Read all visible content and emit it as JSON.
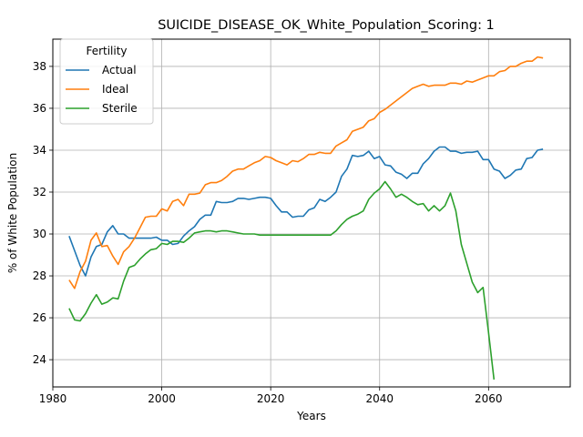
{
  "chart_data": {
    "type": "line",
    "title": "SUICIDE_DISEASE_OK_White_Population_Scoring: 1",
    "xlabel": "Years",
    "ylabel": "% of White Population",
    "xlim": [
      1980,
      2075
    ],
    "ylim": [
      22.7,
      39.3
    ],
    "xticks": [
      1980,
      2000,
      2020,
      2040,
      2060
    ],
    "yticks": [
      24,
      26,
      28,
      30,
      32,
      34,
      36,
      38
    ],
    "grid": true,
    "legend": {
      "title": "Fertility",
      "placement": "top-left"
    },
    "series": [
      {
        "name": "Actual",
        "color": "#1f77b4",
        "x": [
          1983,
          1984,
          1985,
          1986,
          1987,
          1988,
          1989,
          1990,
          1991,
          1992,
          1993,
          1994,
          1995,
          1996,
          1997,
          1998,
          1999,
          2000,
          2001,
          2002,
          2003,
          2004,
          2005,
          2006,
          2007,
          2008,
          2009,
          2010,
          2011,
          2012,
          2013,
          2014,
          2015,
          2016,
          2017,
          2018,
          2019,
          2020,
          2021,
          2022,
          2023,
          2024,
          2025,
          2026,
          2027,
          2028,
          2029,
          2030,
          2031,
          2032,
          2033,
          2034,
          2035,
          2036,
          2037,
          2038,
          2039,
          2040,
          2041,
          2042,
          2043,
          2044,
          2045,
          2046,
          2047,
          2048,
          2049,
          2050,
          2051,
          2052,
          2053,
          2054,
          2055,
          2056,
          2057,
          2058,
          2059,
          2060,
          2061,
          2062,
          2063,
          2064,
          2065,
          2066,
          2067,
          2068,
          2069,
          2070
        ],
        "values": [
          29.9,
          29.2,
          28.5,
          28.0,
          28.9,
          29.4,
          29.5,
          30.1,
          30.4,
          30.0,
          30.0,
          29.8,
          29.8,
          29.8,
          29.8,
          29.8,
          29.85,
          29.7,
          29.7,
          29.5,
          29.55,
          29.9,
          30.15,
          30.35,
          30.7,
          30.9,
          30.9,
          31.55,
          31.5,
          31.5,
          31.55,
          31.7,
          31.7,
          31.65,
          31.7,
          31.75,
          31.75,
          31.7,
          31.35,
          31.05,
          31.05,
          30.8,
          30.85,
          30.85,
          31.15,
          31.25,
          31.65,
          31.55,
          31.75,
          32.0,
          32.75,
          33.1,
          33.75,
          33.7,
          33.75,
          33.95,
          33.6,
          33.7,
          33.3,
          33.25,
          32.95,
          32.85,
          32.65,
          32.9,
          32.9,
          33.35,
          33.6,
          33.95,
          34.15,
          34.15,
          33.95,
          33.95,
          33.85,
          33.9,
          33.9,
          33.95,
          33.55,
          33.55,
          33.1,
          33.0,
          32.65,
          32.8,
          33.05,
          33.1,
          33.6,
          33.65,
          34.0,
          34.05
        ]
      },
      {
        "name": "Ideal",
        "color": "#ff7f0e",
        "x": [
          1983,
          1984,
          1985,
          1986,
          1987,
          1988,
          1989,
          1990,
          1991,
          1992,
          1993,
          1994,
          1995,
          1996,
          1997,
          1998,
          1999,
          2000,
          2001,
          2002,
          2003,
          2004,
          2005,
          2006,
          2007,
          2008,
          2009,
          2010,
          2011,
          2012,
          2013,
          2014,
          2015,
          2016,
          2017,
          2018,
          2019,
          2020,
          2021,
          2022,
          2023,
          2024,
          2025,
          2026,
          2027,
          2028,
          2029,
          2030,
          2031,
          2032,
          2033,
          2034,
          2035,
          2036,
          2037,
          2038,
          2039,
          2040,
          2041,
          2042,
          2043,
          2044,
          2045,
          2046,
          2047,
          2048,
          2049,
          2050,
          2051,
          2052,
          2053,
          2054,
          2055,
          2056,
          2057,
          2058,
          2059,
          2060,
          2061,
          2062,
          2063,
          2064,
          2065,
          2066,
          2067,
          2068,
          2069,
          2070
        ],
        "values": [
          27.8,
          27.4,
          28.2,
          28.7,
          29.7,
          30.05,
          29.4,
          29.45,
          28.95,
          28.55,
          29.15,
          29.4,
          29.8,
          30.3,
          30.8,
          30.85,
          30.85,
          31.2,
          31.1,
          31.55,
          31.65,
          31.35,
          31.9,
          31.9,
          31.95,
          32.35,
          32.45,
          32.45,
          32.55,
          32.75,
          33.0,
          33.1,
          33.1,
          33.25,
          33.4,
          33.5,
          33.7,
          33.65,
          33.5,
          33.4,
          33.3,
          33.5,
          33.45,
          33.6,
          33.8,
          33.8,
          33.9,
          33.85,
          33.85,
          34.2,
          34.35,
          34.5,
          34.9,
          35.0,
          35.1,
          35.4,
          35.5,
          35.8,
          35.95,
          36.15,
          36.35,
          36.55,
          36.75,
          36.95,
          37.05,
          37.15,
          37.05,
          37.1,
          37.1,
          37.1,
          37.2,
          37.2,
          37.15,
          37.3,
          37.25,
          37.35,
          37.45,
          37.55,
          37.55,
          37.75,
          37.8,
          38.0,
          38.0,
          38.15,
          38.25,
          38.25,
          38.45,
          38.4
        ]
      },
      {
        "name": "Sterile",
        "color": "#2ca02c",
        "x": [
          1983,
          1984,
          1985,
          1986,
          1987,
          1988,
          1989,
          1990,
          1991,
          1992,
          1993,
          1994,
          1995,
          1996,
          1997,
          1998,
          1999,
          2000,
          2001,
          2002,
          2003,
          2004,
          2005,
          2006,
          2007,
          2008,
          2009,
          2010,
          2011,
          2012,
          2013,
          2014,
          2015,
          2016,
          2017,
          2018,
          2019,
          2020,
          2021,
          2022,
          2023,
          2024,
          2025,
          2026,
          2027,
          2028,
          2029,
          2030,
          2031,
          2032,
          2033,
          2034,
          2035,
          2036,
          2037,
          2038,
          2039,
          2040,
          2041,
          2042,
          2043,
          2044,
          2045,
          2046,
          2047,
          2048,
          2049,
          2050,
          2051,
          2052,
          2053,
          2054,
          2055,
          2056,
          2057,
          2058,
          2059,
          2060,
          2061
        ],
        "values": [
          26.45,
          25.9,
          25.85,
          26.2,
          26.7,
          27.1,
          26.65,
          26.75,
          26.95,
          26.9,
          27.75,
          28.4,
          28.5,
          28.8,
          29.05,
          29.25,
          29.3,
          29.55,
          29.5,
          29.65,
          29.65,
          29.6,
          29.8,
          30.05,
          30.1,
          30.15,
          30.15,
          30.1,
          30.15,
          30.15,
          30.1,
          30.05,
          30.0,
          30.0,
          30.0,
          29.95,
          29.95,
          29.95,
          29.95,
          29.95,
          29.95,
          29.95,
          29.95,
          29.95,
          29.95,
          29.95,
          29.95,
          29.95,
          29.95,
          30.15,
          30.45,
          30.7,
          30.85,
          30.95,
          31.1,
          31.65,
          31.95,
          32.15,
          32.5,
          32.15,
          31.75,
          31.9,
          31.75,
          31.55,
          31.4,
          31.45,
          31.1,
          31.35,
          31.1,
          31.35,
          31.95,
          31.1,
          29.5,
          28.6,
          27.7,
          27.2,
          27.45,
          25.3,
          23.05
        ]
      }
    ]
  }
}
